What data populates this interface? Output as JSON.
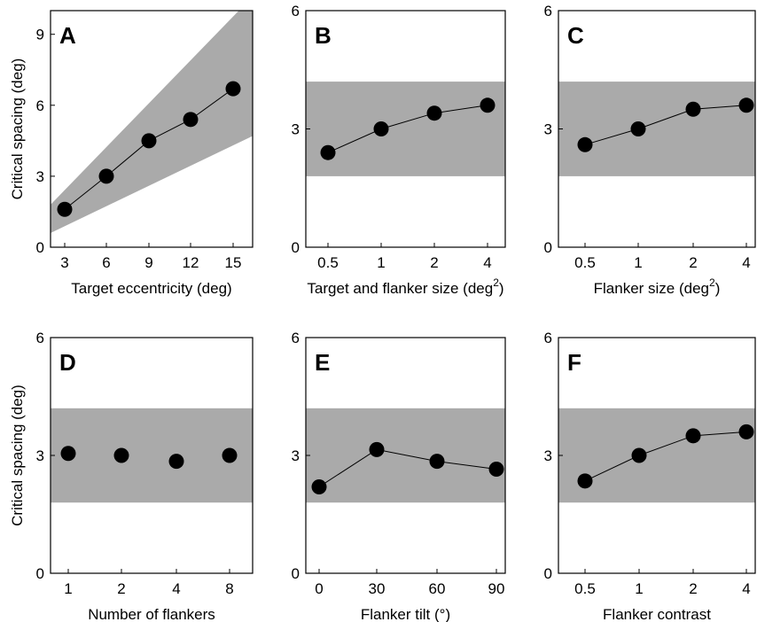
{
  "chart_data": [
    {
      "type": "scatter",
      "panel": "A",
      "ylabel": "Critical spacing (deg)",
      "xlabel": "Target eccentricity (deg)",
      "x_ticks": [
        "3",
        "6",
        "9",
        "12",
        "15"
      ],
      "y_ticks": [
        "0",
        "3",
        "6",
        "9"
      ],
      "ylim": [
        0,
        10
      ],
      "values": [
        1.6,
        3.0,
        4.5,
        5.4,
        6.7
      ],
      "connected": true,
      "band": {
        "lower_at_first": 0.6,
        "lower_at_last": 4.7,
        "upper_at_first": 1.8,
        "upper_at_last": 10.6
      },
      "band_color": "#aaaaaa"
    },
    {
      "type": "line",
      "panel": "B",
      "ylabel": "",
      "xlabel": "Target and flanker size (deg",
      "xlabel_sup": "2",
      "xlabel_end": ")",
      "x_ticks": [
        "0.5",
        "1",
        "2",
        "4"
      ],
      "y_ticks": [
        "0",
        "3",
        "6"
      ],
      "ylim": [
        0,
        6
      ],
      "values": [
        2.4,
        3.0,
        3.4,
        3.6
      ],
      "connected": true,
      "band": {
        "lower": 1.8,
        "upper": 4.2
      },
      "band_color": "#aaaaaa"
    },
    {
      "type": "line",
      "panel": "C",
      "ylabel": "",
      "xlabel": "Flanker size (deg",
      "xlabel_sup": "2",
      "xlabel_end": ")",
      "x_ticks": [
        "0.5",
        "1",
        "2",
        "4"
      ],
      "y_ticks": [
        "0",
        "3",
        "6"
      ],
      "ylim": [
        0,
        6
      ],
      "values": [
        2.6,
        3.0,
        3.5,
        3.6
      ],
      "connected": true,
      "band": {
        "lower": 1.8,
        "upper": 4.2
      },
      "band_color": "#aaaaaa"
    },
    {
      "type": "scatter",
      "panel": "D",
      "ylabel": "Critical spacing (deg)",
      "xlabel": "Number of flankers",
      "x_ticks": [
        "1",
        "2",
        "4",
        "8"
      ],
      "y_ticks": [
        "0",
        "3",
        "6"
      ],
      "ylim": [
        0,
        6
      ],
      "values": [
        3.05,
        3.0,
        2.85,
        3.0
      ],
      "connected": false,
      "band": {
        "lower": 1.8,
        "upper": 4.2
      },
      "band_color": "#aaaaaa"
    },
    {
      "type": "line",
      "panel": "E",
      "ylabel": "",
      "xlabel": "Flanker tilt (°)",
      "x_ticks": [
        "0",
        "30",
        "60",
        "90"
      ],
      "y_ticks": [
        "0",
        "3",
        "6"
      ],
      "ylim": [
        0,
        6
      ],
      "values": [
        2.2,
        3.15,
        2.85,
        2.65
      ],
      "connected": true,
      "band": {
        "lower": 1.8,
        "upper": 4.2
      },
      "band_color": "#aaaaaa"
    },
    {
      "type": "line",
      "panel": "F",
      "ylabel": "",
      "xlabel": "Flanker contrast",
      "x_ticks": [
        "0.5",
        "1",
        "2",
        "4"
      ],
      "y_ticks": [
        "0",
        "3",
        "6"
      ],
      "ylim": [
        0,
        6
      ],
      "values": [
        2.35,
        3.0,
        3.5,
        3.6
      ],
      "connected": true,
      "band": {
        "lower": 1.8,
        "upper": 4.2
      },
      "band_color": "#aaaaaa"
    }
  ]
}
